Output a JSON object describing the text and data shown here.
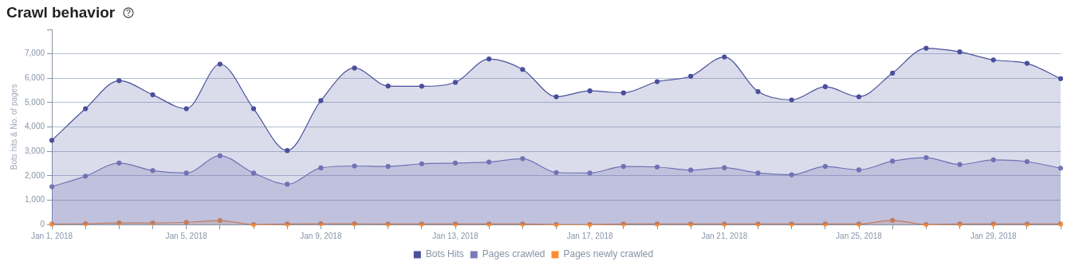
{
  "chart_data": {
    "type": "area",
    "title": "Crawl behavior",
    "ylabel": "Bots hits & No. of pages",
    "x": [
      "2018-01-01",
      "2018-01-02",
      "2018-01-03",
      "2018-01-04",
      "2018-01-05",
      "2018-01-06",
      "2018-01-07",
      "2018-01-08",
      "2018-01-09",
      "2018-01-10",
      "2018-01-11",
      "2018-01-12",
      "2018-01-13",
      "2018-01-14",
      "2018-01-15",
      "2018-01-16",
      "2018-01-17",
      "2018-01-18",
      "2018-01-19",
      "2018-01-20",
      "2018-01-21",
      "2018-01-22",
      "2018-01-23",
      "2018-01-24",
      "2018-01-25",
      "2018-01-26",
      "2018-01-27",
      "2018-01-28",
      "2018-01-29",
      "2018-01-30",
      "2018-01-31"
    ],
    "series": [
      {
        "name": "Bots Hits",
        "color": "#4a4f9c",
        "values": [
          3450,
          4750,
          5900,
          5320,
          4750,
          6580,
          4750,
          3030,
          5080,
          6420,
          5680,
          5670,
          5830,
          6790,
          6360,
          5240,
          5480,
          5400,
          5860,
          6080,
          6870,
          5450,
          5110,
          5650,
          5240,
          6210,
          7230,
          7080,
          6750,
          6610,
          5980
        ]
      },
      {
        "name": "Pages crawled",
        "color": "#7b7bbb",
        "values": [
          1550,
          1980,
          2520,
          2210,
          2110,
          2820,
          2110,
          1650,
          2320,
          2400,
          2380,
          2490,
          2520,
          2560,
          2700,
          2130,
          2110,
          2380,
          2360,
          2230,
          2330,
          2110,
          2040,
          2380,
          2240,
          2600,
          2740,
          2460,
          2650,
          2580,
          2310
        ]
      },
      {
        "name": "Pages newly crawled",
        "color": "#ff8c32",
        "values": [
          20,
          30,
          60,
          60,
          90,
          160,
          0,
          20,
          30,
          30,
          20,
          20,
          20,
          20,
          20,
          0,
          0,
          20,
          20,
          20,
          20,
          20,
          20,
          20,
          20,
          170,
          0,
          20,
          20,
          20,
          20
        ]
      }
    ],
    "xlim": [
      "2018-01-01",
      "2018-01-31"
    ],
    "xticks": [
      {
        "value": "2018-01-01",
        "label": "Jan 1, 2018"
      },
      {
        "value": "2018-01-02",
        "label": null
      },
      {
        "value": "2018-01-03",
        "label": null
      },
      {
        "value": "2018-01-04",
        "label": null
      },
      {
        "value": "2018-01-05",
        "label": "Jan 5, 2018"
      },
      {
        "value": "2018-01-06",
        "label": null
      },
      {
        "value": "2018-01-07",
        "label": null
      },
      {
        "value": "2018-01-08",
        "label": null
      },
      {
        "value": "2018-01-09",
        "label": "Jan 9, 2018"
      },
      {
        "value": "2018-01-10",
        "label": null
      },
      {
        "value": "2018-01-11",
        "label": null
      },
      {
        "value": "2018-01-12",
        "label": null
      },
      {
        "value": "2018-01-13",
        "label": "Jan 13, 2018"
      },
      {
        "value": "2018-01-14",
        "label": null
      },
      {
        "value": "2018-01-15",
        "label": null
      },
      {
        "value": "2018-01-16",
        "label": null
      },
      {
        "value": "2018-01-17",
        "label": "Jan 17, 2018"
      },
      {
        "value": "2018-01-18",
        "label": null
      },
      {
        "value": "2018-01-19",
        "label": null
      },
      {
        "value": "2018-01-20",
        "label": null
      },
      {
        "value": "2018-01-21",
        "label": "Jan 21, 2018"
      },
      {
        "value": "2018-01-22",
        "label": null
      },
      {
        "value": "2018-01-23",
        "label": null
      },
      {
        "value": "2018-01-24",
        "label": null
      },
      {
        "value": "2018-01-25",
        "label": "Jan 25, 2018"
      },
      {
        "value": "2018-01-26",
        "label": null
      },
      {
        "value": "2018-01-27",
        "label": null
      },
      {
        "value": "2018-01-28",
        "label": null
      },
      {
        "value": "2018-01-29",
        "label": "Jan 29, 2018"
      },
      {
        "value": "2018-01-30",
        "label": null
      },
      {
        "value": "2018-01-31",
        "label": null
      }
    ],
    "ylim": [
      0,
      8000
    ],
    "yticks": [
      0,
      {
        "value": 1000,
        "label": "1,000"
      },
      {
        "value": 2000,
        "label": "2,000"
      },
      {
        "value": 3000,
        "label": "3,000"
      },
      {
        "value": 4000,
        "label": "4,000"
      },
      {
        "value": 5000,
        "label": "5,000"
      },
      {
        "value": 6000,
        "label": "6,000"
      },
      {
        "value": 7000,
        "label": "7,000"
      },
      {
        "value": 8000,
        "label": null
      }
    ],
    "grid": "y",
    "legend": "bottom",
    "marker": "circle",
    "line_style": "solid"
  }
}
